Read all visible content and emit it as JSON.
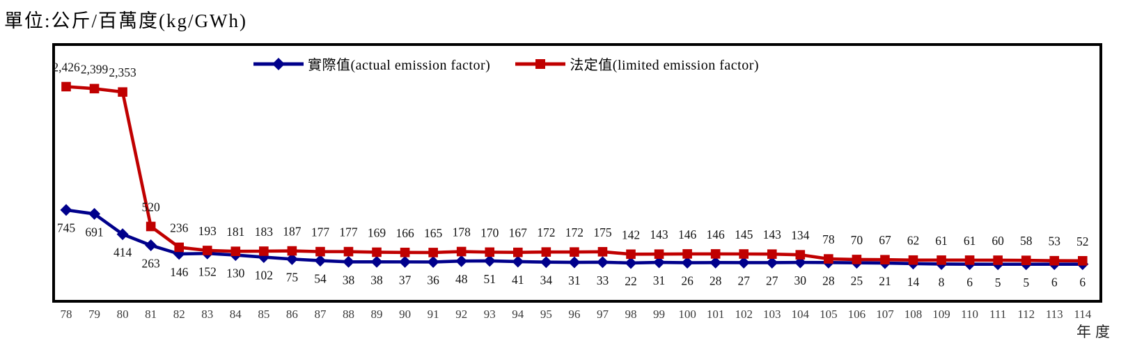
{
  "title": "單位:公斤/百萬度(kg/GWh)",
  "legend": {
    "items": [
      {
        "key": "actual",
        "label": "實際值(actual emission factor)"
      },
      {
        "key": "limited",
        "label": "法定值(limited emission factor)"
      }
    ]
  },
  "chart_data": {
    "type": "line",
    "title": "單位:公斤/百萬度(kg/GWh)",
    "xlabel": "年度",
    "ylabel": "",
    "x": [
      78,
      79,
      80,
      81,
      82,
      83,
      84,
      85,
      86,
      87,
      88,
      89,
      90,
      91,
      92,
      93,
      94,
      95,
      96,
      97,
      98,
      99,
      100,
      101,
      102,
      103,
      104,
      105,
      106,
      107,
      108,
      109,
      110,
      111,
      112,
      113,
      114
    ],
    "series": [
      {
        "name": "實際值(actual emission factor)",
        "key": "actual",
        "color": "#00008B",
        "marker": "diamond",
        "label_side": "below",
        "values": [
          745,
          691,
          414,
          263,
          146,
          152,
          130,
          102,
          75,
          54,
          38,
          38,
          37,
          36,
          48,
          51,
          41,
          34,
          31,
          33,
          22,
          31,
          26,
          28,
          27,
          27,
          30,
          28,
          25,
          21,
          14,
          8,
          6,
          5,
          5,
          6,
          6
        ]
      },
      {
        "name": "法定值(limited emission factor)",
        "key": "limited",
        "color": "#C00000",
        "marker": "square",
        "label_side": "above",
        "values": [
          2426,
          2399,
          2353,
          520,
          236,
          193,
          181,
          183,
          187,
          177,
          177,
          169,
          166,
          165,
          178,
          170,
          167,
          172,
          172,
          175,
          142,
          143,
          146,
          146,
          145,
          143,
          134,
          78,
          70,
          67,
          62,
          61,
          61,
          60,
          58,
          53,
          52
        ]
      }
    ],
    "ylim": [
      -500,
      3000
    ],
    "grid": false,
    "legend_position": "top-center",
    "data_labels": true,
    "label_format": "thousands-comma",
    "frame_color": "#000000"
  }
}
